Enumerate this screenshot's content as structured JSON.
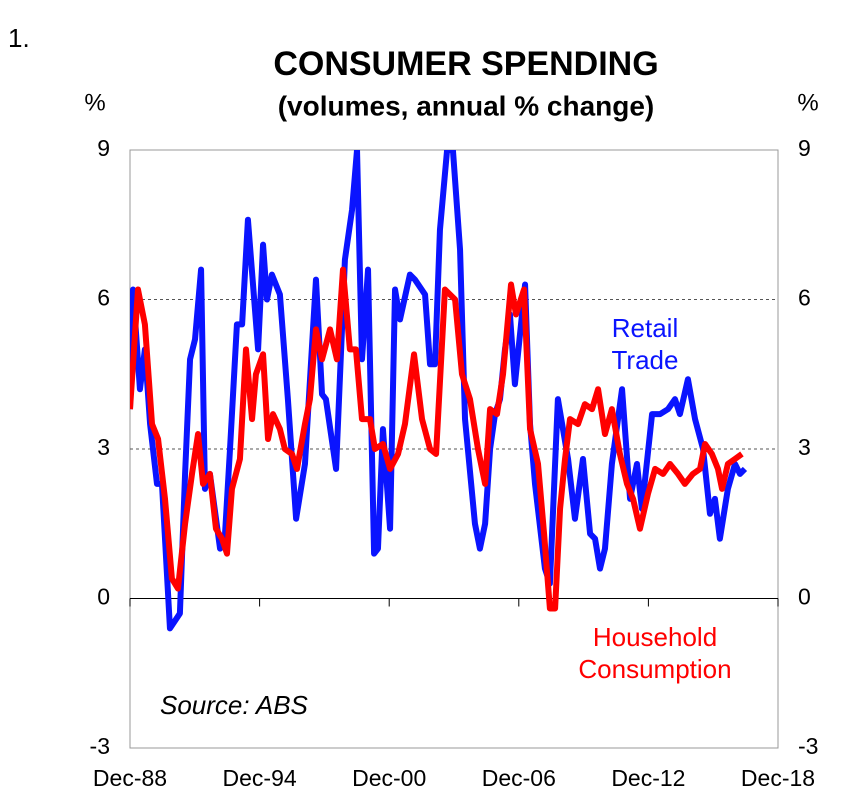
{
  "chart_data": {
    "type": "line",
    "figure_number": "1.",
    "title": "CONSUMER SPENDING",
    "subtitle": "(volumes, annual % change)",
    "y_unit": "%",
    "y2_unit": "%",
    "annotation": "Source: ABS",
    "xlim": [
      1988.92,
      2018.92
    ],
    "xticks": [
      {
        "value": 1988.92,
        "label": "Dec-88"
      },
      {
        "value": 1994.92,
        "label": "Dec-94"
      },
      {
        "value": 2000.92,
        "label": "Dec-00"
      },
      {
        "value": 2006.92,
        "label": "Dec-06"
      },
      {
        "value": 2012.92,
        "label": "Dec-12"
      },
      {
        "value": 2018.92,
        "label": "Dec-18"
      }
    ],
    "ylim": [
      -3,
      9
    ],
    "yticks": [
      -3,
      0,
      3,
      6,
      9
    ],
    "y2lim": [
      -3,
      9
    ],
    "y2ticks": [
      -3,
      0,
      3,
      6,
      9
    ],
    "grid": true,
    "series": [
      {
        "name": "Retail Trade",
        "color": "#0a14ff",
        "x": [
          1988.92,
          1989.06,
          1989.38,
          1989.61,
          1989.85,
          1990.17,
          1990.4,
          1990.77,
          1991.23,
          1991.47,
          1991.7,
          1991.93,
          1992.21,
          1992.39,
          1992.62,
          1993.09,
          1993.32,
          1993.55,
          1993.87,
          1994.11,
          1994.38,
          1994.85,
          1995.08,
          1995.26,
          1995.49,
          1995.86,
          1996.23,
          1996.61,
          1997.02,
          1997.53,
          1997.81,
          1997.99,
          1998.46,
          1998.87,
          1999.2,
          1999.43,
          1999.66,
          1999.94,
          2000.22,
          2000.4,
          2000.63,
          2000.96,
          2001.19,
          2001.42,
          2001.88,
          2002.11,
          2002.58,
          2002.81,
          2003.04,
          2003.27,
          2003.6,
          2003.87,
          2004.2,
          2004.43,
          2004.89,
          2005.12,
          2005.36,
          2005.59,
          2005.82,
          2006.05,
          2006.28,
          2006.51,
          2006.74,
          2007.21,
          2007.44,
          2007.67,
          2008.13,
          2008.36,
          2008.73,
          2009.2,
          2009.52,
          2009.89,
          2010.22,
          2010.45,
          2010.68,
          2010.91,
          2011.23,
          2011.7,
          2012.07,
          2012.39,
          2012.62,
          2013.09,
          2013.46,
          2013.83,
          2014.15,
          2014.38,
          2014.75,
          2015.08,
          2015.45,
          2015.77,
          2016.0,
          2016.23,
          2016.6,
          2016.93,
          2017.16,
          2017.39
        ],
        "values": [
          3.8,
          6.2,
          4.2,
          5.0,
          3.5,
          2.3,
          2.3,
          -0.6,
          -0.3,
          2.5,
          4.8,
          5.2,
          6.6,
          2.2,
          2.5,
          1.0,
          1.3,
          3.0,
          5.5,
          5.5,
          7.6,
          5.0,
          7.1,
          6.0,
          6.5,
          6.1,
          4.0,
          1.6,
          2.7,
          6.4,
          4.1,
          4.0,
          2.6,
          6.8,
          7.8,
          9.0,
          4.8,
          6.6,
          0.9,
          1.0,
          3.4,
          1.4,
          6.2,
          5.6,
          6.5,
          6.4,
          6.1,
          4.7,
          4.7,
          7.4,
          9.0,
          9.0,
          7.0,
          3.6,
          1.5,
          1.0,
          1.5,
          3.0,
          3.7,
          4.0,
          5.0,
          5.7,
          4.3,
          6.3,
          3.5,
          2.3,
          0.6,
          0.3,
          4.0,
          2.8,
          1.6,
          2.8,
          1.3,
          1.2,
          0.6,
          1.0,
          2.7,
          4.2,
          2.0,
          2.7,
          1.8,
          3.7,
          3.7,
          3.8,
          4.0,
          3.7,
          4.4,
          3.6,
          3.0,
          1.7,
          2.0,
          1.2,
          2.2,
          2.7,
          2.5,
          2.6
        ]
      },
      {
        "name": "Household Consumption",
        "color": "#ff0000",
        "x": [
          1988.92,
          1989.29,
          1989.61,
          1989.94,
          1990.22,
          1990.54,
          1990.86,
          1991.14,
          1991.47,
          1991.79,
          1992.07,
          1992.3,
          1992.62,
          1992.9,
          1993.18,
          1993.41,
          1993.64,
          1994.01,
          1994.29,
          1994.57,
          1994.75,
          1995.08,
          1995.31,
          1995.54,
          1995.86,
          1996.09,
          1996.42,
          1996.65,
          1997.02,
          1997.25,
          1997.53,
          1997.81,
          1998.18,
          1998.5,
          1998.78,
          1999.1,
          1999.38,
          1999.66,
          2000.03,
          2000.26,
          2000.63,
          2000.96,
          2001.33,
          2001.65,
          2002.07,
          2002.44,
          2002.81,
          2003.09,
          2003.5,
          2003.97,
          2004.29,
          2004.66,
          2005.03,
          2005.36,
          2005.59,
          2005.91,
          2006.19,
          2006.56,
          2006.79,
          2007.16,
          2007.44,
          2007.81,
          2008.09,
          2008.36,
          2008.6,
          2008.83,
          2009.06,
          2009.29,
          2009.66,
          2009.98,
          2010.31,
          2010.59,
          2010.91,
          2011.23,
          2011.6,
          2011.93,
          2012.21,
          2012.53,
          2012.9,
          2013.23,
          2013.6,
          2013.92,
          2014.29,
          2014.61,
          2014.98,
          2015.31,
          2015.54,
          2015.86,
          2016.14,
          2016.33,
          2016.6,
          2016.93,
          2017.25
        ],
        "values": [
          3.8,
          6.2,
          5.5,
          3.5,
          3.2,
          2.0,
          0.4,
          0.2,
          1.5,
          2.5,
          3.3,
          2.3,
          2.5,
          1.4,
          1.2,
          0.9,
          2.2,
          2.8,
          5.0,
          3.6,
          4.5,
          4.9,
          3.2,
          3.7,
          3.4,
          3.0,
          2.9,
          2.6,
          3.5,
          4.0,
          5.4,
          4.8,
          5.4,
          4.8,
          6.6,
          5.0,
          5.0,
          3.6,
          3.6,
          3.0,
          3.1,
          2.6,
          2.9,
          3.5,
          4.9,
          3.6,
          3.0,
          2.9,
          6.2,
          6.0,
          4.5,
          4.0,
          3.0,
          2.3,
          3.8,
          3.7,
          4.5,
          6.3,
          5.7,
          6.2,
          3.4,
          2.7,
          1.3,
          -0.2,
          -0.2,
          1.8,
          2.8,
          3.6,
          3.5,
          3.9,
          3.8,
          4.2,
          3.3,
          3.8,
          2.9,
          2.3,
          2.0,
          1.4,
          2.1,
          2.6,
          2.5,
          2.7,
          2.5,
          2.3,
          2.5,
          2.6,
          3.1,
          2.9,
          2.6,
          2.2,
          2.7,
          2.8,
          2.9
        ]
      }
    ]
  }
}
